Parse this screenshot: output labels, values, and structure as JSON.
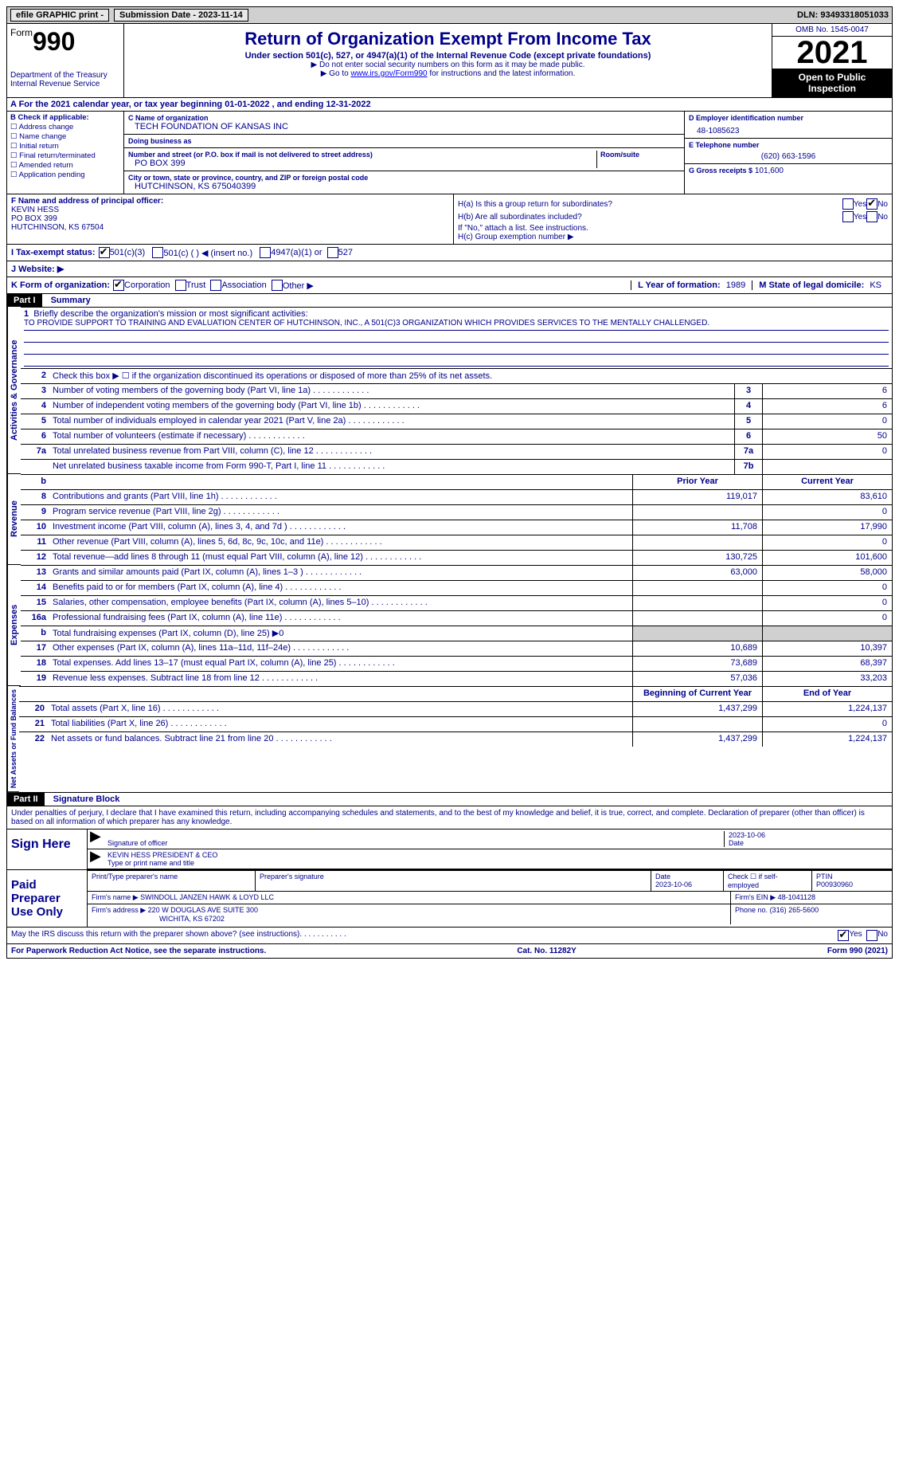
{
  "topbar": {
    "efile": "efile GRAPHIC print -",
    "submission": "Submission Date - 2023-11-14",
    "dln": "DLN: 93493318051033"
  },
  "header": {
    "form_word": "Form",
    "form_num": "990",
    "dept": "Department of the Treasury Internal Revenue Service",
    "title": "Return of Organization Exempt From Income Tax",
    "sub": "Under section 501(c), 527, or 4947(a)(1) of the Internal Revenue Code (except private foundations)",
    "note1": "▶ Do not enter social security numbers on this form as it may be made public.",
    "note2_pre": "▶ Go to ",
    "note2_link": "www.irs.gov/Form990",
    "note2_post": " for instructions and the latest information.",
    "omb": "OMB No. 1545-0047",
    "year": "2021",
    "inspect": "Open to Public Inspection"
  },
  "row_a": "A For the 2021 calendar year, or tax year beginning 01-01-2022   , and ending 12-31-2022",
  "col_b": {
    "title": "B Check if applicable:",
    "items": [
      "Address change",
      "Name change",
      "Initial return",
      "Final return/terminated",
      "Amended return",
      "Application pending"
    ]
  },
  "col_c": {
    "name_lbl": "C Name of organization",
    "name": "TECH FOUNDATION OF KANSAS INC",
    "dba_lbl": "Doing business as",
    "dba": "",
    "street_lbl": "Number and street (or P.O. box if mail is not delivered to street address)",
    "room_lbl": "Room/suite",
    "street": "PO BOX 399",
    "city_lbl": "City or town, state or province, country, and ZIP or foreign postal code",
    "city": "HUTCHINSON, KS  675040399"
  },
  "col_d": {
    "ein_lbl": "D Employer identification number",
    "ein": "48-1085623",
    "phone_lbl": "E Telephone number",
    "phone": "(620) 663-1596",
    "gross_lbl": "G Gross receipts $",
    "gross": "101,600"
  },
  "row_f": {
    "lbl": "F Name and address of principal officer:",
    "name": "KEVIN HESS",
    "street": "PO BOX 399",
    "city": "HUTCHINSON, KS  67504"
  },
  "row_h": {
    "ha": "H(a)  Is this a group return for subordinates?",
    "hb": "H(b)  Are all subordinates included?",
    "hb_note": "If \"No,\" attach a list. See instructions.",
    "hc": "H(c)  Group exemption number ▶"
  },
  "row_i": {
    "lbl": "I  Tax-exempt status:",
    "opts": [
      "501(c)(3)",
      "501(c) (  ) ◀ (insert no.)",
      "4947(a)(1) or",
      "527"
    ]
  },
  "row_j": "J  Website: ▶",
  "row_k": {
    "lbl": "K Form of organization:",
    "opts": [
      "Corporation",
      "Trust",
      "Association",
      "Other ▶"
    ],
    "lyear_lbl": "L Year of formation:",
    "lyear": "1989",
    "mstate_lbl": "M State of legal domicile:",
    "mstate": "KS"
  },
  "part1": {
    "head": "Part I",
    "title": "Summary",
    "line1_lbl": "Briefly describe the organization's mission or most significant activities:",
    "line1_text": "TO PROVIDE SUPPORT TO TRAINING AND EVALUATION CENTER OF HUTCHINSON, INC., A 501(C)3 ORGANIZATION WHICH PROVIDES SERVICES TO THE MENTALLY CHALLENGED.",
    "line2": "Check this box ▶ ☐ if the organization discontinued its operations or disposed of more than 25% of its net assets.",
    "sections": {
      "activities": "Activities & Governance",
      "revenue": "Revenue",
      "expenses": "Expenses",
      "netassets": "Net Assets or Fund Balances"
    },
    "lines_top": [
      {
        "n": "3",
        "d": "Number of voting members of the governing body (Part VI, line 1a)",
        "bn": "3",
        "bv": "6"
      },
      {
        "n": "4",
        "d": "Number of independent voting members of the governing body (Part VI, line 1b)",
        "bn": "4",
        "bv": "6"
      },
      {
        "n": "5",
        "d": "Total number of individuals employed in calendar year 2021 (Part V, line 2a)",
        "bn": "5",
        "bv": "0"
      },
      {
        "n": "6",
        "d": "Total number of volunteers (estimate if necessary)",
        "bn": "6",
        "bv": "50"
      },
      {
        "n": "7a",
        "d": "Total unrelated business revenue from Part VIII, column (C), line 12",
        "bn": "7a",
        "bv": "0"
      },
      {
        "n": "",
        "d": "Net unrelated business taxable income from Form 990-T, Part I, line 11",
        "bn": "7b",
        "bv": ""
      }
    ],
    "col_headers": {
      "prior": "Prior Year",
      "curr": "Current Year"
    },
    "lines_rev": [
      {
        "n": "8",
        "d": "Contributions and grants (Part VIII, line 1h)",
        "p": "119,017",
        "c": "83,610"
      },
      {
        "n": "9",
        "d": "Program service revenue (Part VIII, line 2g)",
        "p": "",
        "c": "0"
      },
      {
        "n": "10",
        "d": "Investment income (Part VIII, column (A), lines 3, 4, and 7d )",
        "p": "11,708",
        "c": "17,990"
      },
      {
        "n": "11",
        "d": "Other revenue (Part VIII, column (A), lines 5, 6d, 8c, 9c, 10c, and 11e)",
        "p": "",
        "c": "0"
      },
      {
        "n": "12",
        "d": "Total revenue—add lines 8 through 11 (must equal Part VIII, column (A), line 12)",
        "p": "130,725",
        "c": "101,600"
      }
    ],
    "lines_exp": [
      {
        "n": "13",
        "d": "Grants and similar amounts paid (Part IX, column (A), lines 1–3 )",
        "p": "63,000",
        "c": "58,000"
      },
      {
        "n": "14",
        "d": "Benefits paid to or for members (Part IX, column (A), line 4)",
        "p": "",
        "c": "0"
      },
      {
        "n": "15",
        "d": "Salaries, other compensation, employee benefits (Part IX, column (A), lines 5–10)",
        "p": "",
        "c": "0"
      },
      {
        "n": "16a",
        "d": "Professional fundraising fees (Part IX, column (A), line 11e)",
        "p": "",
        "c": "0"
      },
      {
        "n": "b",
        "d": "Total fundraising expenses (Part IX, column (D), line 25) ▶0",
        "p": "",
        "c": "",
        "shaded": true
      },
      {
        "n": "17",
        "d": "Other expenses (Part IX, column (A), lines 11a–11d, 11f–24e)",
        "p": "10,689",
        "c": "10,397"
      },
      {
        "n": "18",
        "d": "Total expenses. Add lines 13–17 (must equal Part IX, column (A), line 25)",
        "p": "73,689",
        "c": "68,397"
      },
      {
        "n": "19",
        "d": "Revenue less expenses. Subtract line 18 from line 12",
        "p": "57,036",
        "c": "33,203"
      }
    ],
    "net_headers": {
      "prior": "Beginning of Current Year",
      "curr": "End of Year"
    },
    "lines_net": [
      {
        "n": "20",
        "d": "Total assets (Part X, line 16)",
        "p": "1,437,299",
        "c": "1,224,137"
      },
      {
        "n": "21",
        "d": "Total liabilities (Part X, line 26)",
        "p": "",
        "c": "0"
      },
      {
        "n": "22",
        "d": "Net assets or fund balances. Subtract line 21 from line 20",
        "p": "1,437,299",
        "c": "1,224,137"
      }
    ]
  },
  "part2": {
    "head": "Part II",
    "title": "Signature Block",
    "text": "Under penalties of perjury, I declare that I have examined this return, including accompanying schedules and statements, and to the best of my knowledge and belief, it is true, correct, and complete. Declaration of preparer (other than officer) is based on all information of which preparer has any knowledge.",
    "sign_here": "Sign Here",
    "sig_officer": "Signature of officer",
    "sig_date": "2023-10-06",
    "sig_name": "KEVIN HESS PRESIDENT & CEO",
    "sig_name_lbl": "Type or print name and title",
    "paid": "Paid Preparer Use Only",
    "prep_name_lbl": "Print/Type preparer's name",
    "prep_sig_lbl": "Preparer's signature",
    "prep_date_lbl": "Date",
    "prep_date": "2023-10-06",
    "prep_check": "Check ☐ if self-employed",
    "ptin_lbl": "PTIN",
    "ptin": "P00930960",
    "firm_name_lbl": "Firm's name    ▶",
    "firm_name": "SWINDOLL JANZEN HAWK & LOYD LLC",
    "firm_ein_lbl": "Firm's EIN ▶",
    "firm_ein": "48-1041128",
    "firm_addr_lbl": "Firm's address ▶",
    "firm_addr1": "220 W DOUGLAS AVE SUITE 300",
    "firm_addr2": "WICHITA, KS  67202",
    "firm_phone_lbl": "Phone no.",
    "firm_phone": "(316) 265-5600",
    "discuss": "May the IRS discuss this return with the preparer shown above? (see instructions)"
  },
  "footer": {
    "pra": "For Paperwork Reduction Act Notice, see the separate instructions.",
    "cat": "Cat. No. 11282Y",
    "form": "Form 990 (2021)"
  },
  "yn": {
    "yes": "Yes",
    "no": "No"
  }
}
